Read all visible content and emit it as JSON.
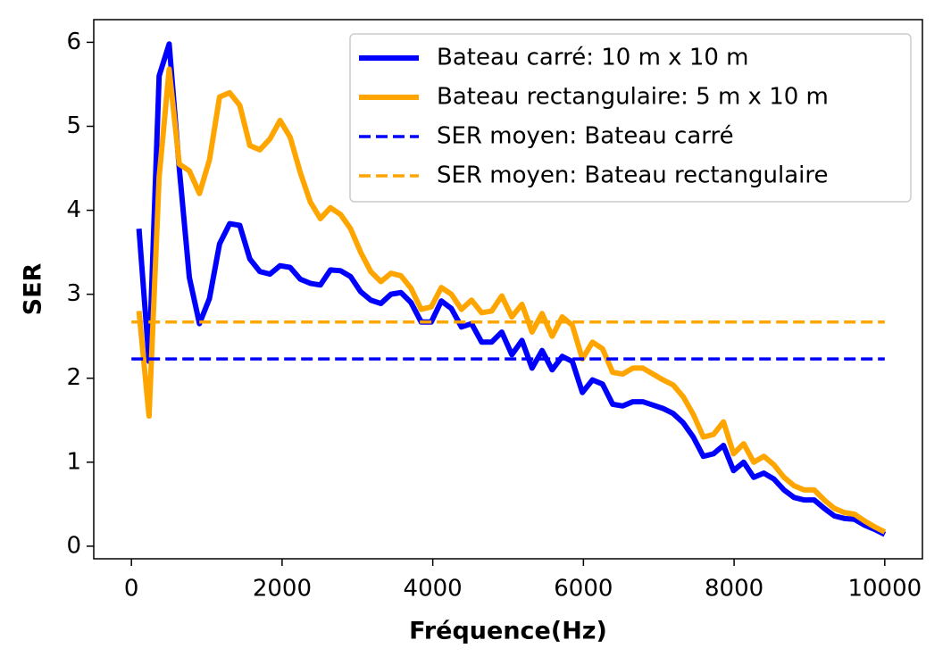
{
  "chart_data": {
    "type": "line",
    "xlabel": "Fréquence(Hz)",
    "ylabel": "SER",
    "xlim": [
      -500,
      10500
    ],
    "ylim": [
      -0.15,
      6.27
    ],
    "xticks": [
      0,
      2000,
      4000,
      6000,
      8000,
      10000
    ],
    "yticks": [
      0,
      1,
      2,
      3,
      4,
      5,
      6
    ],
    "grid": false,
    "legend": "upper right",
    "series": [
      {
        "name": "Bateau carré: 10 m x 10 m",
        "color": "#0000ff",
        "dashed": false,
        "x": [
          100,
          234,
          368,
          501,
          635,
          769,
          903,
          1036,
          1170,
          1304,
          1438,
          1572,
          1705,
          1839,
          1973,
          2107,
          2241,
          2374,
          2508,
          2642,
          2776,
          2909,
          3043,
          3177,
          3311,
          3445,
          3578,
          3712,
          3846,
          3980,
          4114,
          4247,
          4381,
          4515,
          4649,
          4782,
          4916,
          5050,
          5184,
          5318,
          5451,
          5585,
          5719,
          5853,
          5986,
          6120,
          6254,
          6388,
          6522,
          6655,
          6789,
          6923,
          7057,
          7191,
          7324,
          7458,
          7592,
          7726,
          7859,
          7993,
          8127,
          8261,
          8395,
          8528,
          8662,
          8796,
          8930,
          9064,
          9197,
          9331,
          9465,
          9599,
          9733,
          9866,
          10000
        ],
        "values": [
          3.78,
          2.2,
          5.6,
          5.98,
          4.5,
          3.2,
          2.65,
          2.95,
          3.6,
          3.84,
          3.82,
          3.42,
          3.27,
          3.24,
          3.34,
          3.32,
          3.18,
          3.13,
          3.11,
          3.29,
          3.28,
          3.21,
          3.03,
          2.93,
          2.89,
          3.0,
          3.02,
          2.9,
          2.67,
          2.67,
          2.92,
          2.83,
          2.61,
          2.65,
          2.43,
          2.43,
          2.55,
          2.28,
          2.45,
          2.12,
          2.33,
          2.1,
          2.26,
          2.2,
          1.83,
          1.98,
          1.93,
          1.69,
          1.67,
          1.72,
          1.72,
          1.68,
          1.64,
          1.58,
          1.47,
          1.3,
          1.07,
          1.1,
          1.2,
          0.9,
          1.0,
          0.82,
          0.87,
          0.8,
          0.67,
          0.58,
          0.55,
          0.55,
          0.45,
          0.36,
          0.33,
          0.32,
          0.25,
          0.2,
          0.14
        ]
      },
      {
        "name": "Bateau rectangulaire: 5 m x 10 m",
        "color": "#ffa500",
        "dashed": false,
        "x": [
          100,
          234,
          368,
          501,
          635,
          769,
          903,
          1036,
          1170,
          1304,
          1438,
          1572,
          1705,
          1839,
          1973,
          2107,
          2241,
          2374,
          2508,
          2642,
          2776,
          2909,
          3043,
          3177,
          3311,
          3445,
          3578,
          3712,
          3846,
          3980,
          4114,
          4247,
          4381,
          4515,
          4649,
          4782,
          4916,
          5050,
          5184,
          5318,
          5451,
          5585,
          5719,
          5853,
          5986,
          6120,
          6254,
          6388,
          6522,
          6655,
          6789,
          6923,
          7057,
          7191,
          7324,
          7458,
          7592,
          7726,
          7859,
          7993,
          8127,
          8261,
          8395,
          8528,
          8662,
          8796,
          8930,
          9064,
          9197,
          9331,
          9465,
          9599,
          9733,
          9866,
          10000
        ],
        "values": [
          2.8,
          1.55,
          4.4,
          5.68,
          4.55,
          4.47,
          4.2,
          4.6,
          5.35,
          5.4,
          5.25,
          4.77,
          4.72,
          4.85,
          5.07,
          4.87,
          4.45,
          4.1,
          3.9,
          4.03,
          3.95,
          3.78,
          3.5,
          3.27,
          3.15,
          3.25,
          3.22,
          3.07,
          2.82,
          2.85,
          3.08,
          3.0,
          2.82,
          2.93,
          2.78,
          2.8,
          2.98,
          2.73,
          2.88,
          2.55,
          2.77,
          2.5,
          2.73,
          2.63,
          2.23,
          2.43,
          2.35,
          2.07,
          2.05,
          2.12,
          2.12,
          2.05,
          1.98,
          1.92,
          1.78,
          1.57,
          1.3,
          1.33,
          1.48,
          1.1,
          1.22,
          1.0,
          1.07,
          0.97,
          0.82,
          0.72,
          0.67,
          0.67,
          0.55,
          0.45,
          0.4,
          0.38,
          0.3,
          0.23,
          0.17
        ]
      },
      {
        "name": "SER moyen: Bateau carré",
        "color": "#0000ff",
        "dashed": true,
        "x": [
          0,
          10000
        ],
        "values": [
          2.23,
          2.23
        ]
      },
      {
        "name": "SER moyen: Bateau rectangulaire",
        "color": "#ffa500",
        "dashed": true,
        "x": [
          0,
          10000
        ],
        "values": [
          2.67,
          2.67
        ]
      }
    ]
  }
}
